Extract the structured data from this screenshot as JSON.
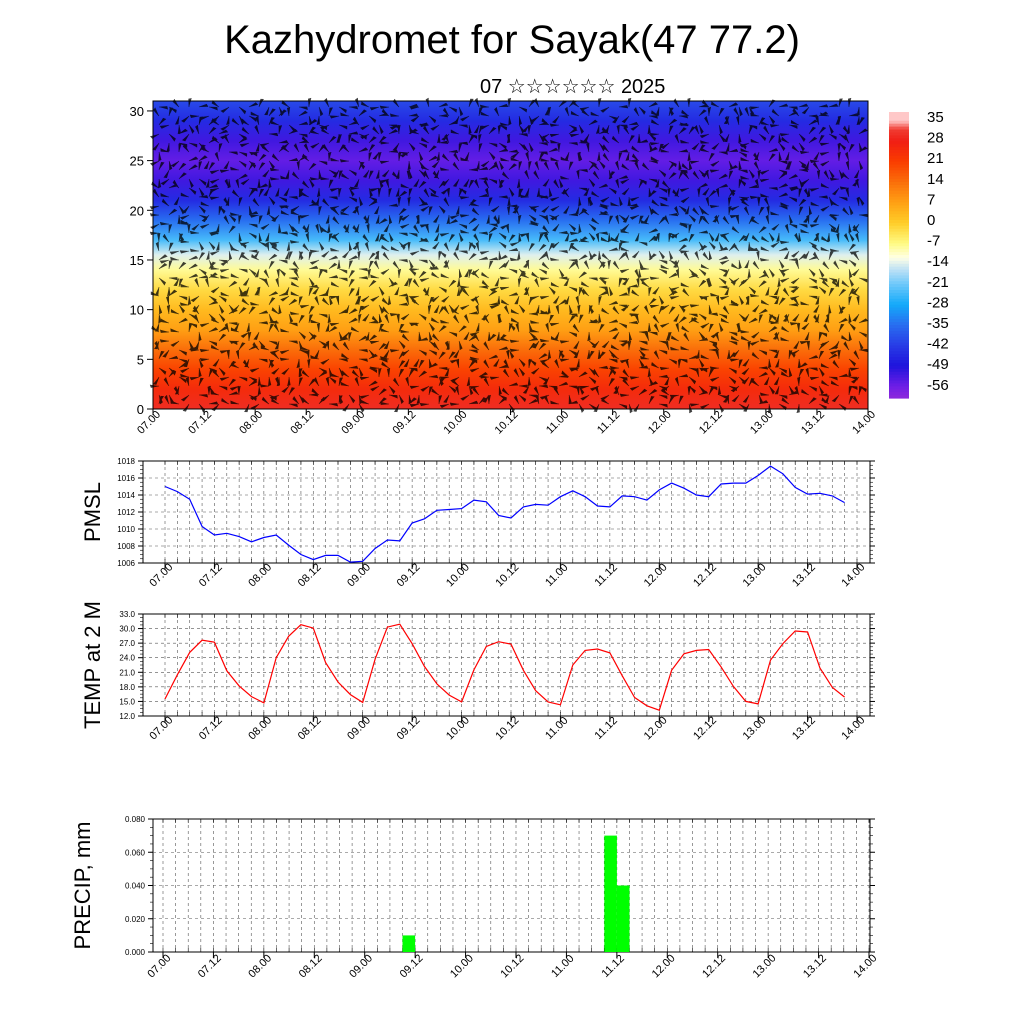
{
  "title": "Kazhydromet for Sayak(47 77.2)",
  "subtitle": "07 ☆☆☆☆☆☆ 2025",
  "time_ticks": [
    "07.00",
    "07.12",
    "08.00",
    "08.12",
    "09.00",
    "09.12",
    "10.00",
    "10.12",
    "11.00",
    "11.12",
    "12.00",
    "12.12",
    "13.00",
    "13.12",
    "14.00"
  ],
  "colorbar": {
    "labels": [
      "35",
      "28",
      "21",
      "14",
      "7",
      "0",
      "-7",
      "-14",
      "-21",
      "-28",
      "-35",
      "-42",
      "-49",
      "-56"
    ]
  },
  "chart_data": [
    {
      "type": "heatmap",
      "name": "temperature-altitude cross-section with wind barbs",
      "y_ticks": [
        "0",
        "5",
        "10",
        "15",
        "20",
        "25",
        "30"
      ],
      "ylim": [
        0,
        31
      ],
      "xlim": [
        0,
        7
      ],
      "bands": [
        {
          "y": 0,
          "value": 30
        },
        {
          "y": 2,
          "value": 25
        },
        {
          "y": 4,
          "value": 20
        },
        {
          "y": 6,
          "value": 14
        },
        {
          "y": 8,
          "value": 7
        },
        {
          "y": 10,
          "value": 3
        },
        {
          "y": 12,
          "value": -2
        },
        {
          "y": 14,
          "value": -8
        },
        {
          "y": 15.5,
          "value": -14
        },
        {
          "y": 17,
          "value": -24
        },
        {
          "y": 19,
          "value": -35
        },
        {
          "y": 21,
          "value": -45
        },
        {
          "y": 23,
          "value": -52
        },
        {
          "y": 25,
          "value": -55
        },
        {
          "y": 27,
          "value": -52
        },
        {
          "y": 29,
          "value": -45
        },
        {
          "y": 31,
          "value": -40
        }
      ]
    },
    {
      "type": "line",
      "ylabel": "PMSL",
      "y_ticks": [
        "1006",
        "1008",
        "1010",
        "1012",
        "1014",
        "1016",
        "1018"
      ],
      "ylim": [
        1006,
        1018
      ],
      "color": "#0000ff",
      "x": [
        0,
        0.125,
        0.25,
        0.375,
        0.5,
        0.625,
        0.75,
        0.875,
        1,
        1.125,
        1.25,
        1.375,
        1.5,
        1.625,
        1.75,
        1.875,
        2,
        2.125,
        2.25,
        2.375,
        2.5,
        2.625,
        2.75,
        2.875,
        3,
        3.125,
        3.25,
        3.375,
        3.5,
        3.625,
        3.75,
        3.875,
        4,
        4.125,
        4.25,
        4.375,
        4.5,
        4.625,
        4.75,
        4.875,
        5,
        5.125,
        5.25,
        5.375,
        5.5,
        5.625,
        5.75,
        5.875,
        6,
        6.125,
        6.25,
        6.375,
        6.5,
        6.625,
        6.75,
        6.875
      ],
      "values": [
        1015,
        1014.4,
        1013.5,
        1010.3,
        1009.3,
        1009.5,
        1009.1,
        1008.5,
        1009,
        1009.3,
        1008.1,
        1007,
        1006.4,
        1006.9,
        1006.9,
        1006.1,
        1006.2,
        1007.7,
        1008.7,
        1008.6,
        1010.7,
        1011.2,
        1012.2,
        1012.3,
        1012.4,
        1013.4,
        1013.2,
        1011.6,
        1011.3,
        1012.6,
        1012.9,
        1012.8,
        1013.8,
        1014.5,
        1013.8,
        1012.7,
        1012.6,
        1013.9,
        1013.8,
        1013.4,
        1014.6,
        1015.4,
        1014.8,
        1014,
        1013.8,
        1015.3,
        1015.4,
        1015.4,
        1016.3,
        1017.4,
        1016.5,
        1014.9,
        1014.1,
        1014.2,
        1013.9,
        1013.1
      ]
    },
    {
      "type": "line",
      "ylabel": "TEMP at 2 M",
      "y_ticks": [
        "12.0",
        "15.0",
        "18.0",
        "21.0",
        "24.0",
        "27.0",
        "30.0",
        "33.0"
      ],
      "ylim": [
        12,
        33
      ],
      "color": "#ff0000",
      "x": [
        0,
        0.125,
        0.25,
        0.375,
        0.5,
        0.625,
        0.75,
        0.875,
        1,
        1.125,
        1.25,
        1.375,
        1.5,
        1.625,
        1.75,
        1.875,
        2,
        2.125,
        2.25,
        2.375,
        2.5,
        2.625,
        2.75,
        2.875,
        3,
        3.125,
        3.25,
        3.375,
        3.5,
        3.625,
        3.75,
        3.875,
        4,
        4.125,
        4.25,
        4.375,
        4.5,
        4.625,
        4.75,
        4.875,
        5,
        5.125,
        5.25,
        5.375,
        5.5,
        5.625,
        5.75,
        5.875,
        6,
        6.125,
        6.25,
        6.375,
        6.5,
        6.625,
        6.75,
        6.875
      ],
      "values": [
        15.5,
        20.5,
        25.1,
        27.6,
        27.2,
        21.3,
        18.2,
        16,
        14.7,
        24,
        28.4,
        30.8,
        30.1,
        23,
        19,
        16.4,
        14.8,
        23.7,
        30.3,
        30.9,
        26.9,
        22.2,
        18.6,
        16.3,
        14.9,
        21.5,
        26.3,
        27.3,
        26.8,
        21.4,
        17.2,
        14.9,
        14.3,
        22.5,
        25.5,
        25.8,
        25,
        20.3,
        15.8,
        14.1,
        13.2,
        21.4,
        24.8,
        25.5,
        25.7,
        22.1,
        18.1,
        15,
        14.5,
        23.5,
        26.9,
        29.5,
        29.3,
        21.9,
        17.9,
        15.9
      ]
    },
    {
      "type": "bar",
      "ylabel": "PRECIP, mm",
      "y_ticks": [
        "0.000",
        "0.020",
        "0.040",
        "0.060",
        "0.080"
      ],
      "ylim": [
        0,
        0.08
      ],
      "color": "#00ff00",
      "x": [
        2.375,
        4.375,
        4.5
      ],
      "values": [
        0.01,
        0.07,
        0.04
      ],
      "bar_width_days": 0.125
    }
  ]
}
